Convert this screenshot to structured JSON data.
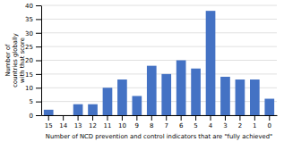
{
  "chart_data": {
    "type": "bar",
    "categories": [
      15,
      14,
      13,
      12,
      11,
      10,
      9,
      8,
      7,
      6,
      5,
      4,
      3,
      2,
      1,
      0
    ],
    "values": [
      2,
      0,
      4,
      4,
      10,
      13,
      7,
      18,
      15,
      20,
      17,
      38,
      14,
      13,
      13,
      6
    ],
    "color": "#4472c4",
    "ylabel": "Number of\ncountries globally\nwith that score",
    "xlabel": "Number of NCD prevention and control indicators that are \"fully achieved\"",
    "ylim": [
      0,
      40
    ],
    "yticks": [
      0,
      5,
      10,
      15,
      20,
      25,
      30,
      35,
      40
    ],
    "grid": true
  }
}
